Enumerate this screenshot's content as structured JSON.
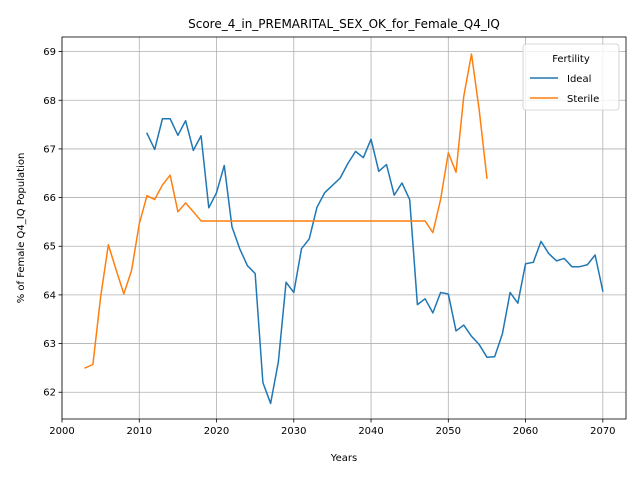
{
  "chart_data": {
    "type": "line",
    "title": "Score_4_in_PREMARITAL_SEX_OK_for_Female_Q4_IQ",
    "xlabel": "Years",
    "ylabel": "% of Female Q4_IQ Population",
    "xlim": [
      2000,
      2073
    ],
    "ylim": [
      61.45,
      69.3
    ],
    "xticks": [
      2000,
      2010,
      2020,
      2030,
      2040,
      2050,
      2060,
      2070
    ],
    "yticks": [
      62,
      63,
      64,
      65,
      66,
      67,
      68,
      69
    ],
    "grid": true,
    "legend": {
      "title": "Fertility",
      "placement": "top-right"
    },
    "series": [
      {
        "name": "Ideal",
        "color": "#1f77b4",
        "x": [
          2011,
          2012,
          2013,
          2014,
          2015,
          2016,
          2017,
          2018,
          2019,
          2020,
          2021,
          2022,
          2023,
          2024,
          2025,
          2026,
          2027,
          2028,
          2029,
          2030,
          2031,
          2032,
          2033,
          2034,
          2035,
          2036,
          2037,
          2038,
          2039,
          2040,
          2041,
          2042,
          2043,
          2044,
          2045,
          2046,
          2047,
          2048,
          2049,
          2050,
          2051,
          2052,
          2053,
          2054,
          2055,
          2056,
          2057,
          2058,
          2059,
          2060,
          2061,
          2062,
          2063,
          2064,
          2065,
          2066,
          2067,
          2068,
          2069,
          2070
        ],
        "values": [
          67.32,
          66.99,
          67.62,
          67.62,
          67.28,
          67.58,
          66.97,
          67.27,
          65.79,
          66.1,
          66.66,
          65.4,
          64.95,
          64.6,
          64.44,
          62.2,
          61.77,
          62.62,
          64.26,
          64.05,
          64.95,
          65.15,
          65.8,
          66.1,
          66.25,
          66.4,
          66.7,
          66.95,
          66.82,
          67.2,
          66.54,
          66.68,
          66.05,
          66.3,
          65.96,
          63.8,
          63.92,
          63.63,
          64.05,
          64.02,
          63.26,
          63.38,
          63.15,
          62.98,
          62.72,
          62.73,
          63.2,
          64.05,
          63.83,
          64.64,
          64.67,
          65.1,
          64.85,
          64.7,
          64.75,
          64.58,
          64.58,
          64.62,
          64.82,
          64.08
        ]
      },
      {
        "name": "Sterile",
        "color": "#ff7f0e",
        "x": [
          2003,
          2004,
          2005,
          2006,
          2007,
          2008,
          2009,
          2010,
          2011,
          2012,
          2013,
          2014,
          2015,
          2016,
          2017,
          2018,
          2019,
          2020,
          2021,
          2022,
          2023,
          2024,
          2025,
          2026,
          2027,
          2028,
          2029,
          2030,
          2031,
          2032,
          2033,
          2034,
          2035,
          2036,
          2037,
          2038,
          2039,
          2040,
          2041,
          2042,
          2043,
          2044,
          2045,
          2046,
          2047,
          2048,
          2049,
          2050,
          2051,
          2052,
          2053,
          2054,
          2055
        ],
        "values": [
          62.5,
          62.57,
          63.96,
          65.03,
          64.52,
          64.02,
          64.5,
          65.46,
          66.04,
          65.96,
          66.26,
          66.46,
          65.71,
          65.89,
          65.71,
          65.52,
          65.52,
          65.52,
          65.52,
          65.52,
          65.52,
          65.52,
          65.52,
          65.52,
          65.52,
          65.52,
          65.52,
          65.52,
          65.52,
          65.52,
          65.52,
          65.52,
          65.52,
          65.52,
          65.52,
          65.52,
          65.52,
          65.52,
          65.52,
          65.52,
          65.52,
          65.52,
          65.52,
          65.52,
          65.52,
          65.28,
          65.96,
          66.92,
          66.52,
          68.08,
          68.95,
          67.8,
          66.4
        ]
      }
    ]
  }
}
